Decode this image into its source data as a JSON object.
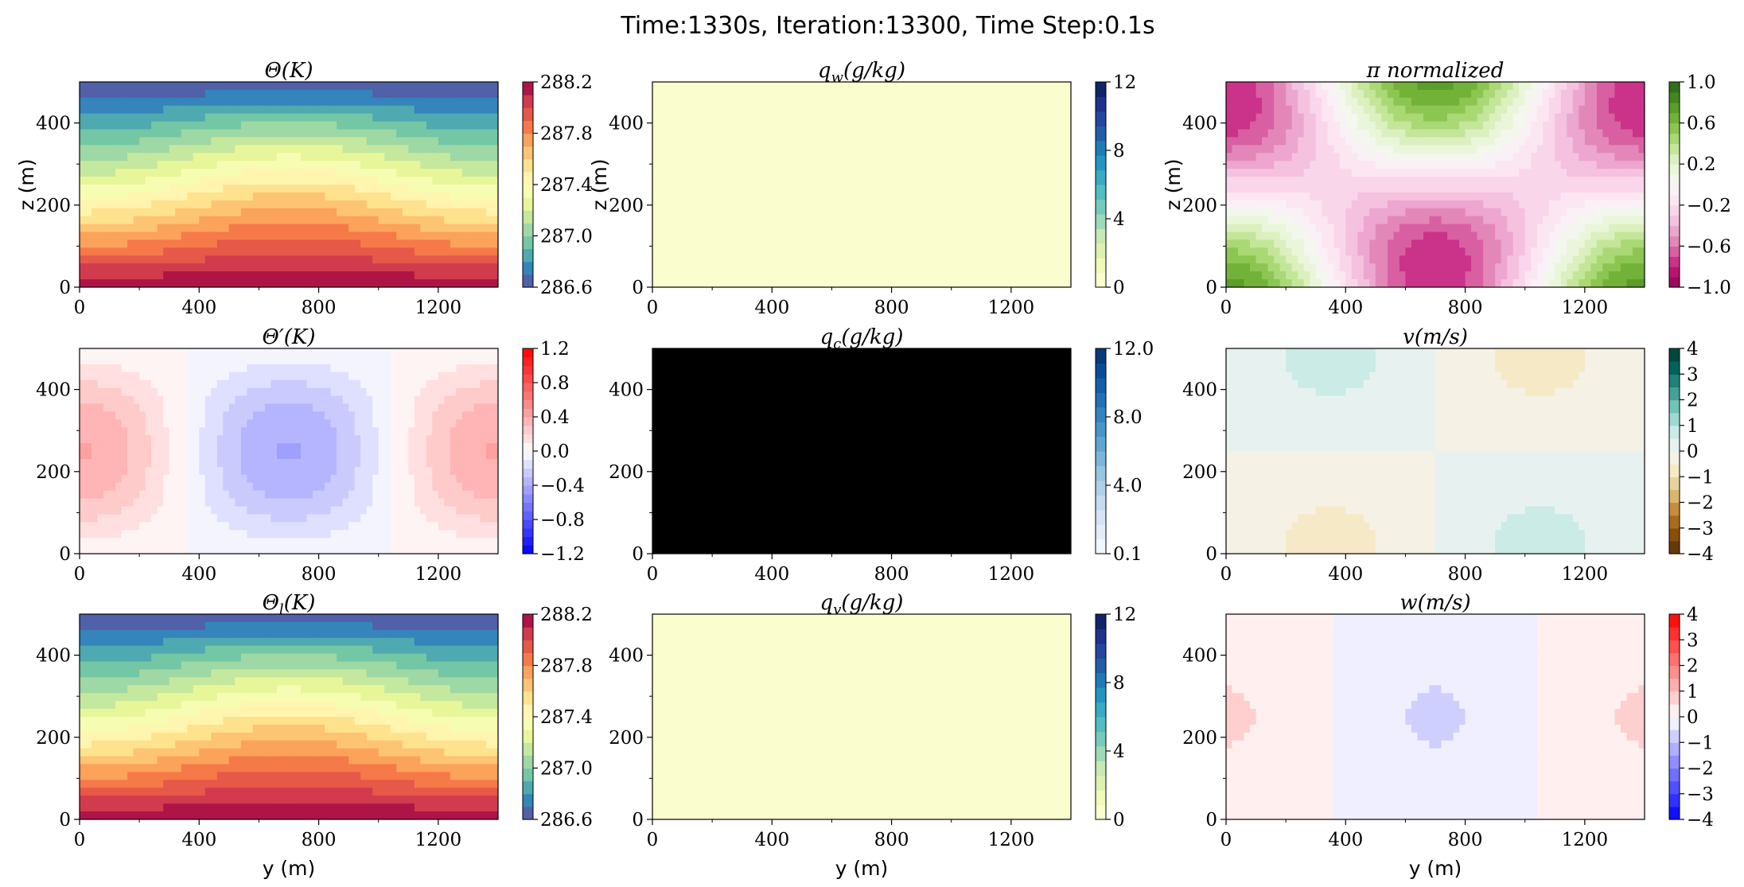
{
  "title": "Time:1330s, Iteration:13300, Time Step:0.1s",
  "chart_data": [
    {
      "id": "theta",
      "type": "heatmap",
      "title": "Θ(K)",
      "xlabel": "",
      "ylabel": "z (m)",
      "xlim": [
        0,
        1400
      ],
      "ylim": [
        0,
        500
      ],
      "xticks": [
        "0",
        "400",
        "800",
        "1200"
      ],
      "yticks": [
        "0",
        "200",
        "400"
      ],
      "colorbar": {
        "ticks": [
          "288.2",
          "287.8",
          "287.4",
          "287.0",
          "286.6"
        ],
        "colormap": "Spectral_r",
        "min": 286.6,
        "max": 288.2,
        "levels": 16
      },
      "field": {
        "kind": "theta",
        "min": 286.6,
        "max": 288.2
      }
    },
    {
      "id": "qw",
      "type": "heatmap",
      "title": "q_w(g/kg)",
      "xlabel": "",
      "ylabel": "z (m)",
      "xlim": [
        0,
        1400
      ],
      "ylim": [
        0,
        500
      ],
      "xticks": [
        "0",
        "400",
        "800",
        "1200"
      ],
      "yticks": [
        "0",
        "200",
        "400"
      ],
      "colorbar": {
        "ticks": [
          "12",
          "8",
          "4",
          "0"
        ],
        "colormap": "YlGnBu",
        "min": 0,
        "max": 12,
        "levels": 14
      },
      "field": {
        "kind": "uniform",
        "value": 0
      }
    },
    {
      "id": "pi",
      "type": "heatmap",
      "title": "π normalized",
      "xlabel": "",
      "ylabel": "z (m)",
      "xlim": [
        0,
        1400
      ],
      "ylim": [
        0,
        500
      ],
      "xticks": [
        "0",
        "400",
        "800",
        "1200"
      ],
      "yticks": [
        "0",
        "200",
        "400"
      ],
      "colorbar": {
        "ticks": [
          "1.0",
          "0.6",
          "0.2",
          "−0.2",
          "−0.6",
          "−1.0"
        ],
        "colormap": "PiYG",
        "min": -1,
        "max": 1,
        "levels": 20
      },
      "field": {
        "kind": "pi"
      }
    },
    {
      "id": "thetap",
      "type": "heatmap",
      "title": "Θ′(K)",
      "xlabel": "",
      "ylabel": "",
      "xlim": [
        0,
        1400
      ],
      "ylim": [
        0,
        500
      ],
      "xticks": [
        "0",
        "400",
        "800",
        "1200"
      ],
      "yticks": [
        "0",
        "200",
        "400"
      ],
      "colorbar": {
        "ticks": [
          "1.2",
          "0.8",
          "0.4",
          "0.0",
          "−0.4",
          "−0.8",
          "−1.2"
        ],
        "colormap": "bwr",
        "min": -1.2,
        "max": 1.2,
        "levels": 24
      },
      "field": {
        "kind": "thetap"
      }
    },
    {
      "id": "qc",
      "type": "heatmap",
      "title": "q_c(g/kg)",
      "xlabel": "",
      "ylabel": "",
      "xlim": [
        0,
        1400
      ],
      "ylim": [
        0,
        500
      ],
      "xticks": [
        "0",
        "400",
        "800",
        "1200"
      ],
      "yticks": [
        "0",
        "200",
        "400"
      ],
      "colorbar": {
        "ticks": [
          "12.0",
          "8.0",
          "4.0",
          "0.1"
        ],
        "colormap": "Blues",
        "min": 0.1,
        "max": 12,
        "levels": 14
      },
      "field": {
        "kind": "masked",
        "value": 0
      }
    },
    {
      "id": "v",
      "type": "heatmap",
      "title": "v(m/s)",
      "xlabel": "",
      "ylabel": "",
      "xlim": [
        0,
        1400
      ],
      "ylim": [
        0,
        500
      ],
      "xticks": [
        "0",
        "400",
        "800",
        "1200"
      ],
      "yticks": [
        "0",
        "200",
        "400"
      ],
      "colorbar": {
        "ticks": [
          "4",
          "3",
          "2",
          "1",
          "0",
          "−1",
          "−2",
          "−3",
          "−4"
        ],
        "colormap": "BrBG",
        "min": -4,
        "max": 4,
        "levels": 16
      },
      "field": {
        "kind": "v"
      }
    },
    {
      "id": "thetal",
      "type": "heatmap",
      "title": "Θ_l(K)",
      "xlabel": "y (m)",
      "ylabel": "",
      "xlim": [
        0,
        1400
      ],
      "ylim": [
        0,
        500
      ],
      "xticks": [
        "0",
        "400",
        "800",
        "1200"
      ],
      "yticks": [
        "0",
        "200",
        "400"
      ],
      "colorbar": {
        "ticks": [
          "288.2",
          "287.8",
          "287.4",
          "287.0",
          "286.6"
        ],
        "colormap": "Spectral_r",
        "min": 286.6,
        "max": 288.2,
        "levels": 16
      },
      "field": {
        "kind": "theta",
        "min": 286.6,
        "max": 288.2
      }
    },
    {
      "id": "qv",
      "type": "heatmap",
      "title": "q_v(g/kg)",
      "xlabel": "y (m)",
      "ylabel": "",
      "xlim": [
        0,
        1400
      ],
      "ylim": [
        0,
        500
      ],
      "xticks": [
        "0",
        "400",
        "800",
        "1200"
      ],
      "yticks": [
        "0",
        "200",
        "400"
      ],
      "colorbar": {
        "ticks": [
          "12",
          "8",
          "4",
          "0"
        ],
        "colormap": "YlGnBu",
        "min": 0,
        "max": 12,
        "levels": 14
      },
      "field": {
        "kind": "uniform",
        "value": 0
      }
    },
    {
      "id": "w",
      "type": "heatmap",
      "title": "w(m/s)",
      "xlabel": "y (m)",
      "ylabel": "",
      "xlim": [
        0,
        1400
      ],
      "ylim": [
        0,
        500
      ],
      "xticks": [
        "0",
        "400",
        "800",
        "1200"
      ],
      "yticks": [
        "0",
        "200",
        "400"
      ],
      "colorbar": {
        "ticks": [
          "4",
          "3",
          "2",
          "1",
          "0",
          "−1",
          "−2",
          "−3",
          "−4"
        ],
        "colormap": "bwr",
        "min": -4,
        "max": 4,
        "levels": 16
      },
      "field": {
        "kind": "w"
      }
    }
  ]
}
